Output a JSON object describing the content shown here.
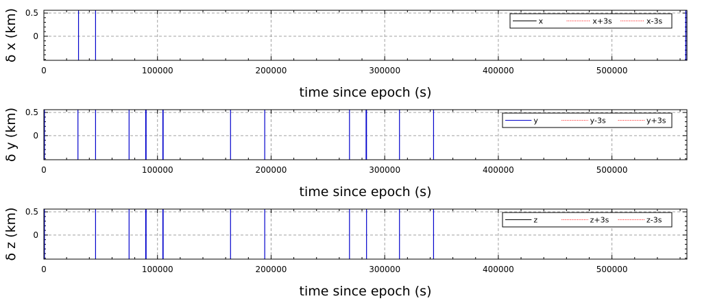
{
  "chart_data": [
    {
      "type": "line",
      "xlabel": "time since epoch (s)",
      "ylabel": "δ x (km)",
      "xlim": [
        0,
        566000
      ],
      "ylim": [
        -0.52,
        0.56
      ],
      "xticks": [
        0,
        100000,
        200000,
        300000,
        400000,
        500000
      ],
      "xtick_labels": [
        "0",
        "100000",
        "200000",
        "300000",
        "400000",
        "500000"
      ],
      "yticks": [
        0.5,
        0
      ],
      "ytick_labels": [
        "0.5",
        "0"
      ],
      "grid": true,
      "legend_position": "top-right",
      "series": [
        {
          "name": "x",
          "color": "#000000",
          "dash": "solid"
        },
        {
          "name": "x+3s",
          "color": "#ff0000",
          "dash": "dotted"
        },
        {
          "name": "x-3s",
          "color": "#ff0000",
          "dash": "dotted"
        }
      ],
      "spike_color": "#0000cc",
      "spikes_x": [
        30500,
        45500,
        565000,
        566000
      ]
    },
    {
      "type": "line",
      "xlabel": "time since epoch (s)",
      "ylabel": "δ y (km)",
      "xlim": [
        0,
        566000
      ],
      "ylim": [
        -0.52,
        0.56
      ],
      "xticks": [
        0,
        100000,
        200000,
        300000,
        400000,
        500000
      ],
      "xtick_labels": [
        "0",
        "100000",
        "200000",
        "300000",
        "400000",
        "500000"
      ],
      "yticks": [
        0.5,
        0
      ],
      "ytick_labels": [
        "0.5",
        "0"
      ],
      "grid": true,
      "legend_position": "top-right",
      "series": [
        {
          "name": "y",
          "color": "#0000cc",
          "dash": "solid"
        },
        {
          "name": "y-3s",
          "color": "#ff0000",
          "dash": "dotted"
        },
        {
          "name": "y+3s",
          "color": "#ff0000",
          "dash": "dotted"
        }
      ],
      "spike_color": "#0000cc",
      "spikes_x": [
        500,
        30000,
        45500,
        75000,
        89600,
        90000,
        104700,
        105000,
        164300,
        194400,
        269000,
        283600,
        284000,
        313000,
        343000
      ]
    },
    {
      "type": "line",
      "xlabel": "time since epoch (s)",
      "ylabel": "δ z (km)",
      "xlim": [
        0,
        566000
      ],
      "ylim": [
        -0.52,
        0.56
      ],
      "xticks": [
        0,
        100000,
        200000,
        300000,
        400000,
        500000
      ],
      "xtick_labels": [
        "0",
        "100000",
        "200000",
        "300000",
        "400000",
        "500000"
      ],
      "yticks": [
        0.5,
        0
      ],
      "ytick_labels": [
        "0.5",
        "0"
      ],
      "grid": true,
      "legend_position": "top-right",
      "series": [
        {
          "name": "z",
          "color": "#000000",
          "dash": "solid"
        },
        {
          "name": "z+3s",
          "color": "#ff0000",
          "dash": "dotted"
        },
        {
          "name": "z-3s",
          "color": "#ff0000",
          "dash": "dotted"
        }
      ],
      "spike_color": "#0000cc",
      "spikes_x": [
        500,
        45500,
        75000,
        89600,
        90000,
        104700,
        105000,
        164300,
        194400,
        269000,
        284000,
        313000,
        343000
      ]
    }
  ]
}
